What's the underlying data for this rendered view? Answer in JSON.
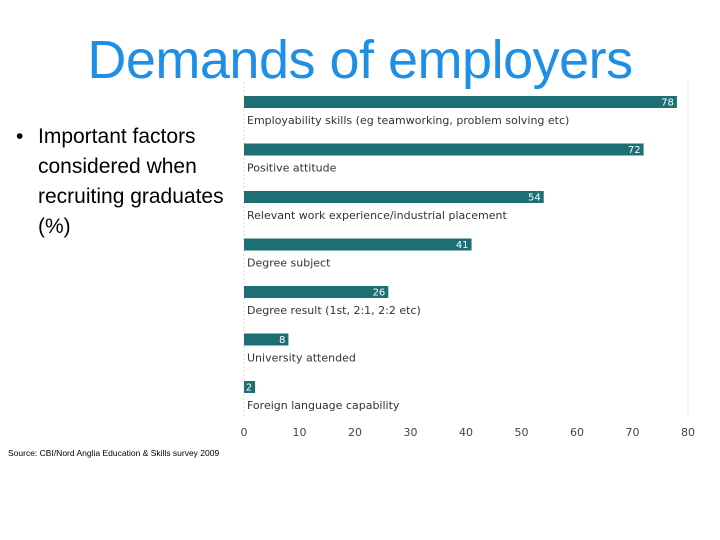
{
  "slide": {
    "title": "Demands of employers",
    "bullet": "Important factors considered when recruiting graduates (%)",
    "source": "Source: CBI/Nord Anglia Education & Skills survey 2009"
  },
  "chart_data": {
    "type": "bar",
    "orientation": "horizontal",
    "categories": [
      "Employability skills (eg teamworking, problem solving etc)",
      "Positive attitude",
      "Relevant work experience/industrial placement",
      "Degree subject",
      "Degree result (1st, 2:1, 2:2 etc)",
      "University attended",
      "Foreign language capability"
    ],
    "values": [
      78,
      72,
      54,
      41,
      26,
      8,
      2
    ],
    "xlim": [
      0,
      80
    ],
    "xticks": [
      0,
      10,
      20,
      30,
      40,
      50,
      60,
      70,
      80
    ],
    "bar_color": "#1d6f73",
    "label_color": "#ffffff",
    "category_color": "#333333",
    "title": "",
    "xlabel": "",
    "ylabel": ""
  }
}
